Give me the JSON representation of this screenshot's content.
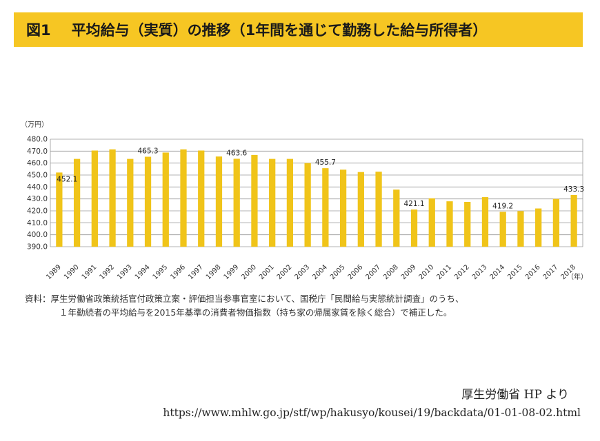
{
  "title": {
    "figure_label": "図1",
    "text": "平均給与（実質）の推移（1年間を通じて勤務した給与所得者）"
  },
  "chart_data": {
    "type": "bar",
    "unit": "（万円）",
    "x_unit": "（年）",
    "categories": [
      "1989",
      "1990",
      "1991",
      "1992",
      "1993",
      "1994",
      "1995",
      "1996",
      "1997",
      "1998",
      "1999",
      "2000",
      "2001",
      "2002",
      "2003",
      "2004",
      "2005",
      "2006",
      "2007",
      "2008",
      "2009",
      "2010",
      "2011",
      "2012",
      "2013",
      "2014",
      "2015",
      "2016",
      "2017",
      "2018"
    ],
    "values": [
      452.1,
      463.5,
      470.5,
      471.5,
      463.5,
      465.3,
      468.8,
      471.5,
      470.5,
      465.5,
      463.6,
      466.8,
      463.5,
      463.5,
      460.0,
      455.7,
      454.5,
      452.5,
      452.8,
      437.8,
      421.1,
      430.5,
      428.0,
      427.5,
      431.5,
      419.2,
      419.8,
      422.0,
      430.0,
      433.3
    ],
    "data_labels": [
      {
        "index": 0,
        "text": "452.1"
      },
      {
        "index": 5,
        "text": "465.3"
      },
      {
        "index": 10,
        "text": "463.6"
      },
      {
        "index": 15,
        "text": "455.7"
      },
      {
        "index": 20,
        "text": "421.1"
      },
      {
        "index": 25,
        "text": "419.2"
      },
      {
        "index": 29,
        "text": "433.3"
      }
    ],
    "y_ticks": [
      "390.0",
      "400.0",
      "410.0",
      "420.0",
      "430.0",
      "440.0",
      "450.0",
      "460.0",
      "470.0",
      "480.0"
    ],
    "ylim": [
      390,
      480
    ],
    "grid": true,
    "bar_color": "#f0c419"
  },
  "note": {
    "line1": "資料：厚生労働省政策統括官付政策立案・評価担当参事官室において、国税庁「民間給与実態統計調査」のうち、",
    "line2": "１年勤続者の平均給与を2015年基準の消費者物価指数（持ち家の帰属家賃を除く総合）で補正した。"
  },
  "credit": "厚生労働省 HP より",
  "source_url": "https://www.mhlw.go.jp/stf/wp/hakusyo/kousei/19/backdata/01-01-08-02.html"
}
